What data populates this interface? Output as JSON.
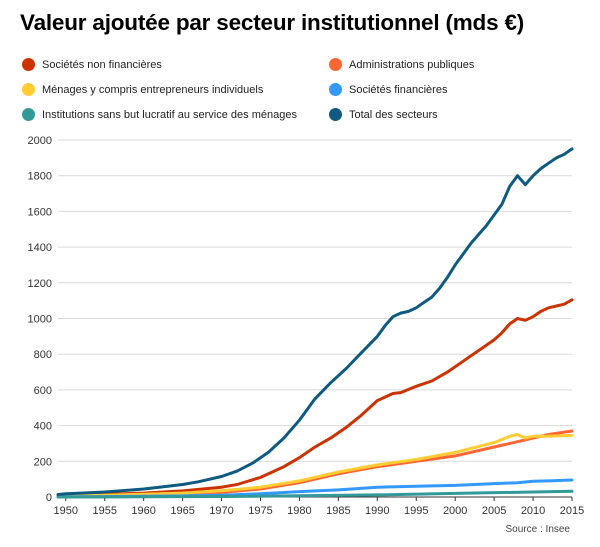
{
  "title": "Valeur ajoutée par secteur institutionnel (mds €)",
  "source": "Source : Insee",
  "chart_data": {
    "type": "line",
    "title": "Valeur ajoutée par secteur institutionnel (mds €)",
    "xlabel": "",
    "ylabel": "",
    "xlim": [
      1949,
      2015
    ],
    "ylim": [
      0,
      2000
    ],
    "xticks": [
      1950,
      1955,
      1960,
      1965,
      1970,
      1975,
      1980,
      1985,
      1990,
      1995,
      2000,
      2005,
      2010,
      2015
    ],
    "yticks": [
      0,
      200,
      400,
      600,
      800,
      1000,
      1200,
      1400,
      1600,
      1800,
      2000
    ],
    "grid": "horizontal",
    "legend_position": "top",
    "series": [
      {
        "name": "Sociétés non financières",
        "color": "#cc3300",
        "x": [
          1949,
          1955,
          1960,
          1965,
          1970,
          1972,
          1975,
          1978,
          1980,
          1982,
          1984,
          1986,
          1988,
          1990,
          1992,
          1993,
          1995,
          1997,
          1999,
          2001,
          2003,
          2005,
          2006,
          2007,
          2008,
          2009,
          2010,
          2011,
          2012,
          2013,
          2014,
          2015
        ],
        "y": [
          7,
          15,
          22,
          34,
          55,
          70,
          110,
          170,
          220,
          280,
          330,
          390,
          460,
          540,
          580,
          585,
          620,
          650,
          700,
          760,
          820,
          880,
          920,
          970,
          1000,
          990,
          1010,
          1040,
          1060,
          1070,
          1080,
          1105
        ]
      },
      {
        "name": "Administrations publiques",
        "color": "#ff6633",
        "x": [
          1949,
          1955,
          1960,
          1965,
          1970,
          1975,
          1980,
          1985,
          1990,
          1995,
          2000,
          2005,
          2008,
          2010,
          2012,
          2015
        ],
        "y": [
          3,
          6,
          10,
          17,
          26,
          45,
          80,
          130,
          170,
          200,
          230,
          280,
          310,
          330,
          350,
          370
        ]
      },
      {
        "name": "Ménages y compris entrepreneurs individuels",
        "color": "#ffcc33",
        "x": [
          1949,
          1955,
          1960,
          1965,
          1970,
          1975,
          1980,
          1985,
          1990,
          1995,
          2000,
          2005,
          2007,
          2008,
          2009,
          2010,
          2012,
          2015
        ],
        "y": [
          4,
          10,
          15,
          22,
          35,
          55,
          90,
          140,
          180,
          210,
          250,
          305,
          340,
          350,
          330,
          340,
          340,
          345
        ]
      },
      {
        "name": "Sociétés financières",
        "color": "#3399ff",
        "x": [
          1949,
          1955,
          1960,
          1965,
          1970,
          1975,
          1980,
          1985,
          1990,
          1995,
          2000,
          2005,
          2008,
          2010,
          2012,
          2015
        ],
        "y": [
          1,
          2,
          4,
          6,
          10,
          18,
          30,
          40,
          55,
          60,
          65,
          75,
          80,
          88,
          90,
          95
        ]
      },
      {
        "name": "Institutions sans but lucratif au service des ménages",
        "color": "#339999",
        "x": [
          1949,
          1960,
          1970,
          1980,
          1990,
          2000,
          2010,
          2015
        ],
        "y": [
          0,
          1,
          3,
          7,
          12,
          20,
          28,
          32
        ]
      },
      {
        "name": "Total des secteurs",
        "color": "#0f5a80",
        "x": [
          1949,
          1950,
          1952,
          1955,
          1958,
          1960,
          1962,
          1965,
          1967,
          1970,
          1972,
          1974,
          1976,
          1978,
          1980,
          1982,
          1984,
          1986,
          1988,
          1990,
          1991,
          1992,
          1993,
          1994,
          1995,
          1996,
          1997,
          1998,
          1999,
          2000,
          2001,
          2002,
          2003,
          2004,
          2005,
          2006,
          2007,
          2008,
          2009,
          2010,
          2011,
          2012,
          2013,
          2014,
          2015
        ],
        "y": [
          14,
          18,
          22,
          28,
          38,
          45,
          55,
          70,
          85,
          115,
          145,
          190,
          250,
          330,
          430,
          550,
          640,
          720,
          810,
          900,
          960,
          1010,
          1030,
          1040,
          1060,
          1090,
          1120,
          1170,
          1230,
          1300,
          1360,
          1420,
          1470,
          1520,
          1580,
          1640,
          1740,
          1800,
          1750,
          1800,
          1840,
          1870,
          1900,
          1920,
          1950
        ]
      }
    ]
  }
}
